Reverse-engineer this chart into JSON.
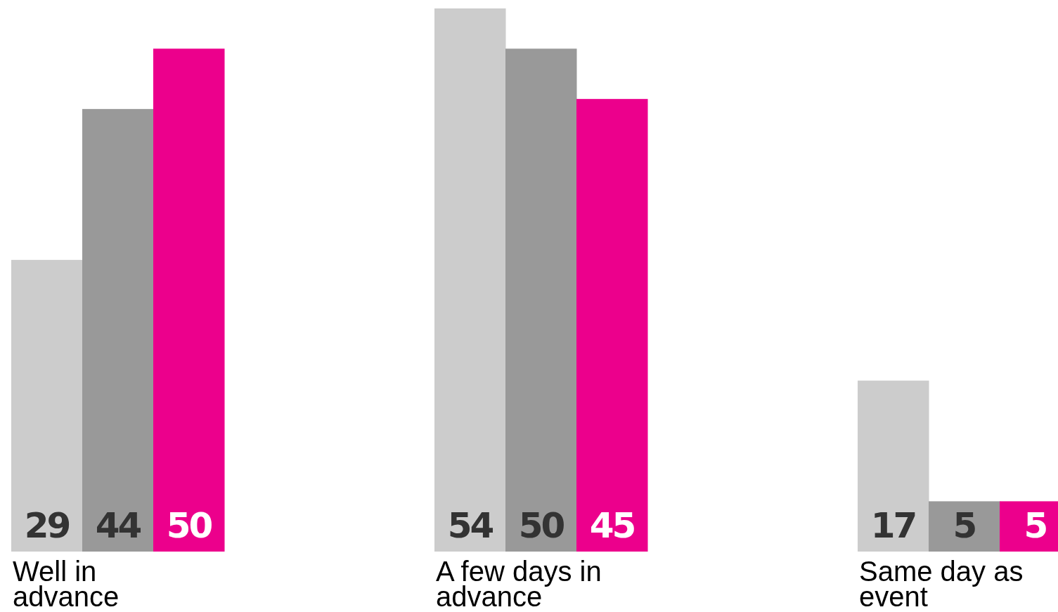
{
  "chart_data": {
    "type": "bar",
    "categories": [
      "Well in advance",
      "A few days in advance",
      "Same day as event"
    ],
    "series": [
      {
        "color": "#cccccc",
        "values": [
          29,
          54,
          17
        ]
      },
      {
        "color": "#999999",
        "values": [
          44,
          50,
          5
        ]
      },
      {
        "color": "#ec008c",
        "values": [
          50,
          45,
          5
        ]
      }
    ],
    "data_labels": true
  }
}
